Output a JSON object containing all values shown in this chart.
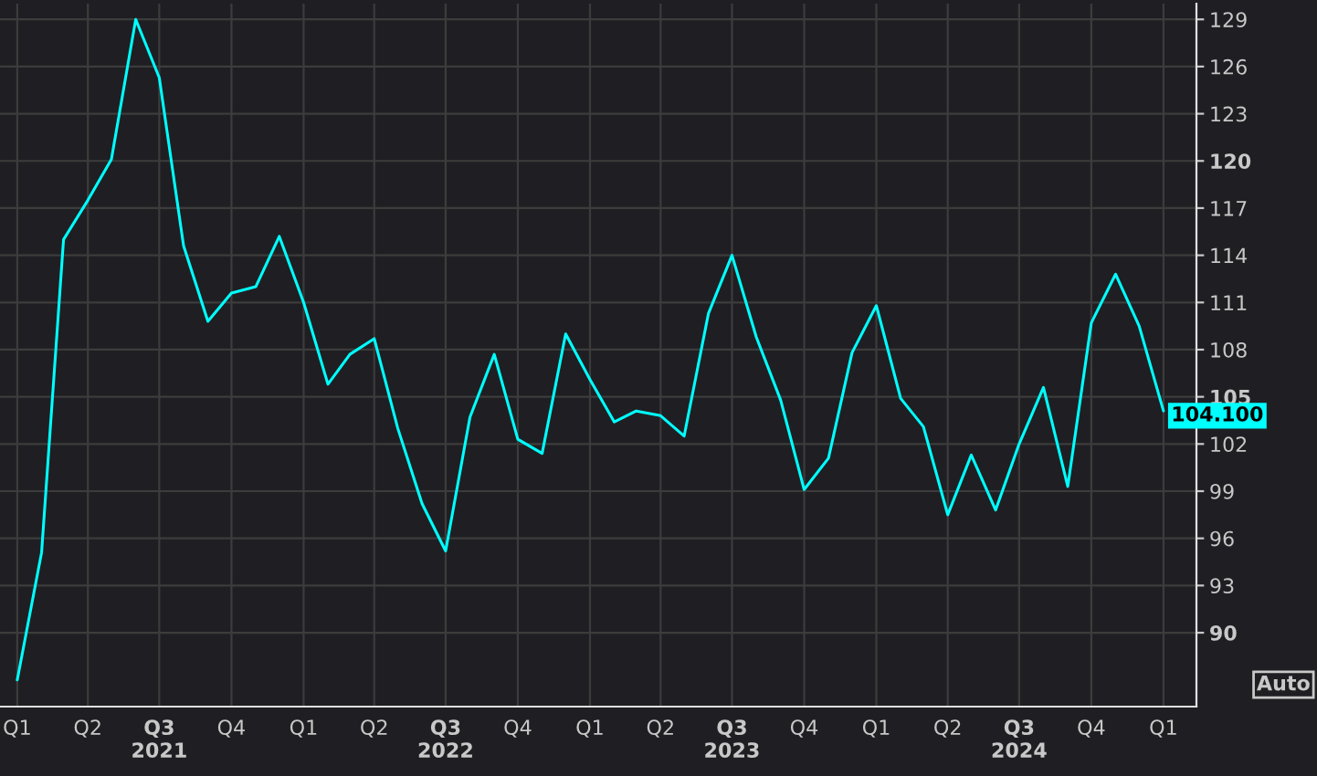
{
  "chart_data": {
    "type": "line",
    "x": [
      "2021-01",
      "2021-02",
      "2021-03",
      "2021-04",
      "2021-05",
      "2021-06",
      "2021-07",
      "2021-08",
      "2021-09",
      "2021-10",
      "2021-11",
      "2021-12",
      "2022-01",
      "2022-02",
      "2022-03",
      "2022-04",
      "2022-05",
      "2022-06",
      "2022-07",
      "2022-08",
      "2022-09",
      "2022-10",
      "2022-11",
      "2022-12",
      "2023-01",
      "2023-02",
      "2023-03",
      "2023-04",
      "2023-05",
      "2023-06",
      "2023-07",
      "2023-08",
      "2023-09",
      "2023-10",
      "2023-11",
      "2023-12",
      "2024-01",
      "2024-02",
      "2024-03",
      "2024-04",
      "2024-05",
      "2024-06",
      "2024-07",
      "2024-08",
      "2024-09",
      "2024-10",
      "2024-11",
      "2024-12",
      "2025-01"
    ],
    "series": [
      {
        "color": "#00ffff",
        "values": [
          87.0,
          95.1,
          115.0,
          117.5,
          120.1,
          129.0,
          125.3,
          114.6,
          109.8,
          111.6,
          112.0,
          115.2,
          111.0,
          105.8,
          107.7,
          108.7,
          103.0,
          98.2,
          95.2,
          103.7,
          107.7,
          102.3,
          101.4,
          109.0,
          106.1,
          103.4,
          104.1,
          103.8,
          102.5,
          110.3,
          114.0,
          108.8,
          104.8,
          99.1,
          101.1,
          107.8,
          110.8,
          104.9,
          103.1,
          97.5,
          101.3,
          97.8,
          102.0,
          105.6,
          99.3,
          109.7,
          112.8,
          109.5,
          104.1
        ],
        "value_labels": [
          null,
          null,
          null,
          null,
          null,
          null,
          null,
          null,
          null,
          null,
          null,
          null,
          null,
          null,
          null,
          null,
          null,
          null,
          null,
          null,
          null,
          null,
          null,
          null,
          null,
          null,
          null,
          null,
          null,
          null,
          null,
          null,
          null,
          null,
          null,
          null,
          null,
          null,
          null,
          null,
          null,
          null,
          null,
          null,
          null,
          null,
          null,
          null,
          "104.100"
        ]
      }
    ],
    "xlim": [
      "2020-12-10",
      "2025-02-12"
    ],
    "xticks": [
      {
        "value": "2021-01-01",
        "label": "Q1"
      },
      {
        "value": "2021-04-01",
        "label": "Q2"
      },
      {
        "value": "2021-07-01",
        "label": "Q3\n2021"
      },
      {
        "value": "2021-10-01",
        "label": "Q4"
      },
      {
        "value": "2022-01-01",
        "label": "Q1"
      },
      {
        "value": "2022-04-01",
        "label": "Q2"
      },
      {
        "value": "2022-07-01",
        "label": "Q3\n2022"
      },
      {
        "value": "2022-10-01",
        "label": "Q4"
      },
      {
        "value": "2023-01-01",
        "label": "Q1"
      },
      {
        "value": "2023-04-01",
        "label": "Q2"
      },
      {
        "value": "2023-07-01",
        "label": "Q3\n2023"
      },
      {
        "value": "2023-10-01",
        "label": "Q4"
      },
      {
        "value": "2024-01-01",
        "label": "Q1"
      },
      {
        "value": "2024-04-01",
        "label": "Q2"
      },
      {
        "value": "2024-07-01",
        "label": "Q3\n2024"
      },
      {
        "value": "2024-10-01",
        "label": "Q4"
      },
      {
        "value": "2025-01-01",
        "label": "Q1"
      }
    ],
    "ylim": [
      85.3,
      130
    ],
    "yticks": [
      90,
      93,
      96,
      99,
      102,
      105,
      108,
      111,
      114,
      117,
      120,
      123,
      126,
      129
    ],
    "grid": true,
    "annotations": [
      "Auto"
    ]
  }
}
